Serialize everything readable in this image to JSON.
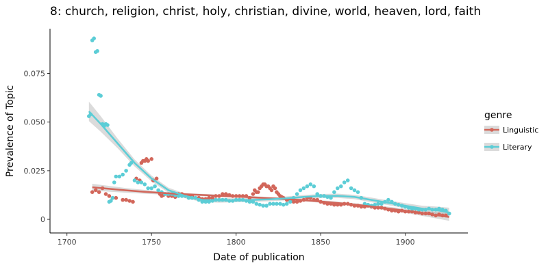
{
  "chart_data": {
    "type": "scatter",
    "title": "8: church, religion, christ, holy, christian, divine, world, heaven, lord, faith",
    "xlabel": "Date of publication",
    "ylabel": "Prevalence of Topic",
    "xlim": [
      1690,
      1937
    ],
    "ylim": [
      -0.007,
      0.098
    ],
    "x_ticks": [
      1700,
      1750,
      1800,
      1850,
      1900
    ],
    "y_ticks": [
      0,
      0.025,
      0.05,
      0.075
    ],
    "x_tick_labels": [
      "1700",
      "1750",
      "1800",
      "1850",
      "1900"
    ],
    "y_tick_labels": [
      "0",
      "0.025",
      "0.050",
      "0.075"
    ],
    "grid": false,
    "legend": {
      "title": "genre",
      "position": "right"
    },
    "series": [
      {
        "name": "Linguistic",
        "color": "#d2665a",
        "points": [
          [
            1715,
            0.014
          ],
          [
            1717,
            0.015
          ],
          [
            1719,
            0.014
          ],
          [
            1721,
            0.016
          ],
          [
            1723,
            0.013
          ],
          [
            1725,
            0.012
          ],
          [
            1727,
            0.011
          ],
          [
            1729,
            0.011
          ],
          [
            1733,
            0.01
          ],
          [
            1735,
            0.01
          ],
          [
            1737,
            0.0095
          ],
          [
            1739,
            0.009
          ],
          [
            1741,
            0.021
          ],
          [
            1743,
            0.02
          ],
          [
            1744,
            0.029
          ],
          [
            1745,
            0.03
          ],
          [
            1746,
            0.03
          ],
          [
            1747,
            0.031
          ],
          [
            1748,
            0.03
          ],
          [
            1750,
            0.031
          ],
          [
            1751,
            0.02
          ],
          [
            1753,
            0.021
          ],
          [
            1755,
            0.013
          ],
          [
            1756,
            0.012
          ],
          [
            1757,
            0.0125
          ],
          [
            1758,
            0.013
          ],
          [
            1760,
            0.012
          ],
          [
            1762,
            0.012
          ],
          [
            1764,
            0.0115
          ],
          [
            1766,
            0.013
          ],
          [
            1768,
            0.013
          ],
          [
            1770,
            0.012
          ],
          [
            1772,
            0.012
          ],
          [
            1774,
            0.012
          ],
          [
            1776,
            0.011
          ],
          [
            1778,
            0.011
          ],
          [
            1780,
            0.0105
          ],
          [
            1782,
            0.0105
          ],
          [
            1784,
            0.011
          ],
          [
            1786,
            0.011
          ],
          [
            1788,
            0.012
          ],
          [
            1790,
            0.012
          ],
          [
            1792,
            0.013
          ],
          [
            1794,
            0.013
          ],
          [
            1796,
            0.0125
          ],
          [
            1798,
            0.012
          ],
          [
            1800,
            0.012
          ],
          [
            1802,
            0.012
          ],
          [
            1804,
            0.012
          ],
          [
            1806,
            0.012
          ],
          [
            1808,
            0.011
          ],
          [
            1810,
            0.013
          ],
          [
            1811,
            0.015
          ],
          [
            1812,
            0.014
          ],
          [
            1813,
            0.014
          ],
          [
            1814,
            0.016
          ],
          [
            1815,
            0.017
          ],
          [
            1816,
            0.018
          ],
          [
            1817,
            0.018
          ],
          [
            1818,
            0.017
          ],
          [
            1819,
            0.017
          ],
          [
            1820,
            0.016
          ],
          [
            1821,
            0.015
          ],
          [
            1822,
            0.017
          ],
          [
            1823,
            0.016
          ],
          [
            1824,
            0.014
          ],
          [
            1825,
            0.013
          ],
          [
            1826,
            0.012
          ],
          [
            1827,
            0.0115
          ],
          [
            1828,
            0.011
          ],
          [
            1830,
            0.01
          ],
          [
            1832,
            0.0095
          ],
          [
            1834,
            0.009
          ],
          [
            1836,
            0.009
          ],
          [
            1838,
            0.0095
          ],
          [
            1840,
            0.01
          ],
          [
            1842,
            0.011
          ],
          [
            1844,
            0.011
          ],
          [
            1846,
            0.01
          ],
          [
            1848,
            0.01
          ],
          [
            1850,
            0.009
          ],
          [
            1852,
            0.0085
          ],
          [
            1854,
            0.008
          ],
          [
            1856,
            0.008
          ],
          [
            1858,
            0.0075
          ],
          [
            1860,
            0.0075
          ],
          [
            1862,
            0.0075
          ],
          [
            1864,
            0.008
          ],
          [
            1866,
            0.008
          ],
          [
            1868,
            0.0075
          ],
          [
            1870,
            0.007
          ],
          [
            1872,
            0.007
          ],
          [
            1874,
            0.0065
          ],
          [
            1876,
            0.0065
          ],
          [
            1878,
            0.007
          ],
          [
            1880,
            0.0065
          ],
          [
            1882,
            0.006
          ],
          [
            1884,
            0.006
          ],
          [
            1886,
            0.006
          ],
          [
            1888,
            0.0055
          ],
          [
            1890,
            0.005
          ],
          [
            1892,
            0.0045
          ],
          [
            1894,
            0.0045
          ],
          [
            1896,
            0.004
          ],
          [
            1898,
            0.0045
          ],
          [
            1900,
            0.004
          ],
          [
            1902,
            0.004
          ],
          [
            1904,
            0.004
          ],
          [
            1906,
            0.0035
          ],
          [
            1908,
            0.0035
          ],
          [
            1910,
            0.003
          ],
          [
            1912,
            0.003
          ],
          [
            1914,
            0.003
          ],
          [
            1916,
            0.0025
          ],
          [
            1918,
            0.002
          ],
          [
            1920,
            0.0025
          ],
          [
            1922,
            0.002
          ],
          [
            1924,
            0.002
          ]
        ],
        "trend": [
          [
            1715,
            0.0165
          ],
          [
            1725,
            0.0157
          ],
          [
            1735,
            0.0149
          ],
          [
            1745,
            0.0142
          ],
          [
            1755,
            0.0136
          ],
          [
            1765,
            0.0131
          ],
          [
            1775,
            0.0127
          ],
          [
            1785,
            0.0123
          ],
          [
            1795,
            0.0119
          ],
          [
            1805,
            0.0115
          ],
          [
            1815,
            0.0111
          ],
          [
            1825,
            0.0106
          ],
          [
            1835,
            0.0101
          ],
          [
            1845,
            0.0095
          ],
          [
            1855,
            0.0088
          ],
          [
            1865,
            0.008
          ],
          [
            1875,
            0.0071
          ],
          [
            1885,
            0.0061
          ],
          [
            1895,
            0.005
          ],
          [
            1905,
            0.0038
          ],
          [
            1915,
            0.0025
          ],
          [
            1926,
            0.0012
          ]
        ],
        "trend_band_halfwidth": [
          0.0018,
          0.0015,
          0.0012,
          0.001,
          0.0008,
          0.0007,
          0.0006,
          0.0006,
          0.0006,
          0.0006,
          0.0006,
          0.0006,
          0.0006,
          0.0006,
          0.0007,
          0.0007,
          0.0008,
          0.0009,
          0.001,
          0.0012,
          0.0015,
          0.002
        ]
      },
      {
        "name": "Literary",
        "color": "#5ccdd6",
        "points": [
          [
            1713,
            0.053
          ],
          [
            1714,
            0.054
          ],
          [
            1715,
            0.092
          ],
          [
            1716,
            0.093
          ],
          [
            1717,
            0.086
          ],
          [
            1718,
            0.0865
          ],
          [
            1719,
            0.064
          ],
          [
            1720,
            0.0635
          ],
          [
            1721,
            0.049
          ],
          [
            1722,
            0.048
          ],
          [
            1723,
            0.049
          ],
          [
            1724,
            0.0485
          ],
          [
            1725,
            0.009
          ],
          [
            1726,
            0.0095
          ],
          [
            1727,
            0.011
          ],
          [
            1728,
            0.019
          ],
          [
            1729,
            0.022
          ],
          [
            1731,
            0.022
          ],
          [
            1733,
            0.023
          ],
          [
            1735,
            0.025
          ],
          [
            1737,
            0.028
          ],
          [
            1738,
            0.029
          ],
          [
            1740,
            0.02
          ],
          [
            1742,
            0.019
          ],
          [
            1744,
            0.019
          ],
          [
            1746,
            0.018
          ],
          [
            1748,
            0.016
          ],
          [
            1750,
            0.016
          ],
          [
            1752,
            0.017
          ],
          [
            1754,
            0.015
          ],
          [
            1756,
            0.014
          ],
          [
            1758,
            0.013
          ],
          [
            1760,
            0.013
          ],
          [
            1762,
            0.013
          ],
          [
            1764,
            0.0125
          ],
          [
            1766,
            0.012
          ],
          [
            1768,
            0.012
          ],
          [
            1770,
            0.012
          ],
          [
            1772,
            0.011
          ],
          [
            1774,
            0.011
          ],
          [
            1776,
            0.011
          ],
          [
            1778,
            0.01
          ],
          [
            1780,
            0.009
          ],
          [
            1782,
            0.009
          ],
          [
            1784,
            0.009
          ],
          [
            1786,
            0.0095
          ],
          [
            1788,
            0.01
          ],
          [
            1790,
            0.01
          ],
          [
            1792,
            0.01
          ],
          [
            1794,
            0.01
          ],
          [
            1796,
            0.0095
          ],
          [
            1798,
            0.0095
          ],
          [
            1800,
            0.01
          ],
          [
            1802,
            0.01
          ],
          [
            1804,
            0.01
          ],
          [
            1806,
            0.0095
          ],
          [
            1808,
            0.009
          ],
          [
            1810,
            0.009
          ],
          [
            1812,
            0.008
          ],
          [
            1814,
            0.0075
          ],
          [
            1816,
            0.007
          ],
          [
            1818,
            0.007
          ],
          [
            1820,
            0.008
          ],
          [
            1822,
            0.008
          ],
          [
            1824,
            0.008
          ],
          [
            1826,
            0.008
          ],
          [
            1828,
            0.0075
          ],
          [
            1830,
            0.008
          ],
          [
            1832,
            0.009
          ],
          [
            1834,
            0.011
          ],
          [
            1836,
            0.013
          ],
          [
            1838,
            0.015
          ],
          [
            1840,
            0.016
          ],
          [
            1842,
            0.017
          ],
          [
            1844,
            0.018
          ],
          [
            1846,
            0.017
          ],
          [
            1848,
            0.013
          ],
          [
            1850,
            0.012
          ],
          [
            1852,
            0.012
          ],
          [
            1854,
            0.0115
          ],
          [
            1856,
            0.011
          ],
          [
            1858,
            0.014
          ],
          [
            1860,
            0.016
          ],
          [
            1862,
            0.017
          ],
          [
            1864,
            0.019
          ],
          [
            1866,
            0.02
          ],
          [
            1868,
            0.016
          ],
          [
            1870,
            0.015
          ],
          [
            1872,
            0.014
          ],
          [
            1874,
            0.011
          ],
          [
            1876,
            0.008
          ],
          [
            1878,
            0.0075
          ],
          [
            1880,
            0.007
          ],
          [
            1882,
            0.0075
          ],
          [
            1884,
            0.008
          ],
          [
            1886,
            0.008
          ],
          [
            1888,
            0.009
          ],
          [
            1890,
            0.01
          ],
          [
            1892,
            0.009
          ],
          [
            1894,
            0.008
          ],
          [
            1896,
            0.0075
          ],
          [
            1898,
            0.007
          ],
          [
            1900,
            0.0065
          ],
          [
            1902,
            0.006
          ],
          [
            1904,
            0.0055
          ],
          [
            1906,
            0.0055
          ],
          [
            1908,
            0.005
          ],
          [
            1910,
            0.005
          ],
          [
            1912,
            0.005
          ],
          [
            1914,
            0.0055
          ],
          [
            1916,
            0.005
          ],
          [
            1918,
            0.005
          ],
          [
            1920,
            0.0055
          ],
          [
            1922,
            0.005
          ],
          [
            1924,
            0.0045
          ],
          [
            1926,
            0.003
          ]
        ],
        "trend": [
          [
            1713,
            0.0555
          ],
          [
            1720,
            0.049
          ],
          [
            1730,
            0.039
          ],
          [
            1740,
            0.029
          ],
          [
            1750,
            0.021
          ],
          [
            1760,
            0.015
          ],
          [
            1770,
            0.012
          ],
          [
            1780,
            0.01
          ],
          [
            1790,
            0.0097
          ],
          [
            1800,
            0.0098
          ],
          [
            1810,
            0.01
          ],
          [
            1820,
            0.0103
          ],
          [
            1830,
            0.0108
          ],
          [
            1840,
            0.0115
          ],
          [
            1850,
            0.012
          ],
          [
            1860,
            0.0121
          ],
          [
            1870,
            0.0115
          ],
          [
            1880,
            0.01
          ],
          [
            1890,
            0.0085
          ],
          [
            1900,
            0.007
          ],
          [
            1910,
            0.0055
          ],
          [
            1920,
            0.0045
          ],
          [
            1926,
            0.0035
          ]
        ],
        "trend_band_halfwidth": [
          0.005,
          0.004,
          0.0025,
          0.0018,
          0.0015,
          0.0013,
          0.0012,
          0.0011,
          0.0011,
          0.001,
          0.001,
          0.001,
          0.001,
          0.001,
          0.001,
          0.0011,
          0.0011,
          0.0012,
          0.0012,
          0.0013,
          0.0015,
          0.002,
          0.0025
        ]
      }
    ]
  }
}
